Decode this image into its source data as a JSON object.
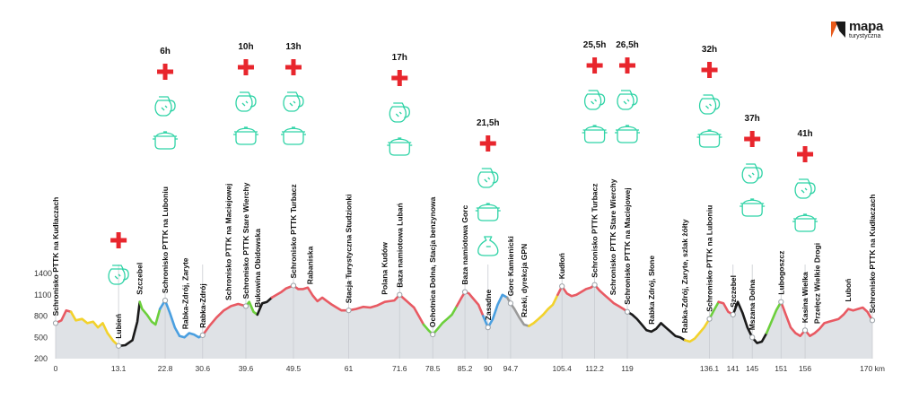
{
  "chart_data": {
    "type": "area",
    "title": "",
    "xlabel": "km",
    "ylabel": "",
    "xlim": [
      0,
      170
    ],
    "ylim": [
      200,
      1400
    ],
    "y_ticks": [
      200,
      500,
      800,
      1100,
      1400
    ],
    "x_ticks": [
      {
        "value": 0,
        "label": "0"
      },
      {
        "value": 13.1,
        "label": "13.1"
      },
      {
        "value": 22.8,
        "label": "22.8"
      },
      {
        "value": 30.6,
        "label": "30.6"
      },
      {
        "value": 39.6,
        "label": "39.6"
      },
      {
        "value": 49.5,
        "label": "49.5"
      },
      {
        "value": 61,
        "label": "61"
      },
      {
        "value": 71.6,
        "label": "71.6"
      },
      {
        "value": 78.5,
        "label": "78.5"
      },
      {
        "value": 85.2,
        "label": "85.2"
      },
      {
        "value": 90,
        "label": "90"
      },
      {
        "value": 94.7,
        "label": "94.7"
      },
      {
        "value": 105.4,
        "label": "105.4"
      },
      {
        "value": 112.2,
        "label": "112.2"
      },
      {
        "value": 119,
        "label": "119"
      },
      {
        "value": 136.1,
        "label": "136.1"
      },
      {
        "value": 141,
        "label": "141"
      },
      {
        "value": 145,
        "label": "145"
      },
      {
        "value": 151,
        "label": "151"
      },
      {
        "value": 156,
        "label": "156"
      },
      {
        "value": 170,
        "label": "170 km"
      }
    ],
    "profile": [
      [
        0,
        700
      ],
      [
        1.2,
        740
      ],
      [
        2.2,
        880
      ],
      [
        3.2,
        860
      ],
      [
        4.2,
        740
      ],
      [
        5.5,
        760
      ],
      [
        6.6,
        700
      ],
      [
        7.8,
        720
      ],
      [
        8.8,
        640
      ],
      [
        9.8,
        700
      ],
      [
        10.8,
        560
      ],
      [
        12.0,
        450
      ],
      [
        13.1,
        380
      ],
      [
        14.5,
        390
      ],
      [
        16.0,
        460
      ],
      [
        17.0,
        720
      ],
      [
        17.5,
        1000
      ],
      [
        18.0,
        900
      ],
      [
        19.0,
        820
      ],
      [
        20.0,
        720
      ],
      [
        20.8,
        680
      ],
      [
        21.7,
        900
      ],
      [
        22.8,
        1020
      ],
      [
        23.8,
        840
      ],
      [
        24.8,
        640
      ],
      [
        25.8,
        520
      ],
      [
        26.8,
        500
      ],
      [
        27.8,
        560
      ],
      [
        28.8,
        540
      ],
      [
        29.8,
        500
      ],
      [
        30.6,
        530
      ],
      [
        32.0,
        660
      ],
      [
        33.5,
        780
      ],
      [
        35.0,
        880
      ],
      [
        36.5,
        940
      ],
      [
        38.0,
        970
      ],
      [
        39.6,
        940
      ],
      [
        40.3,
        1000
      ],
      [
        41.2,
        860
      ],
      [
        42.0,
        820
      ],
      [
        43.0,
        980
      ],
      [
        44.0,
        1000
      ],
      [
        45.0,
        1060
      ],
      [
        46.0,
        1100
      ],
      [
        47.0,
        1140
      ],
      [
        48.0,
        1190
      ],
      [
        49.5,
        1230
      ],
      [
        50.5,
        1180
      ],
      [
        51.5,
        1180
      ],
      [
        52.5,
        1200
      ],
      [
        53.5,
        1090
      ],
      [
        54.5,
        1010
      ],
      [
        55.5,
        1060
      ],
      [
        56.5,
        1010
      ],
      [
        57.5,
        960
      ],
      [
        58.5,
        920
      ],
      [
        59.5,
        880
      ],
      [
        61.0,
        880
      ],
      [
        62.5,
        900
      ],
      [
        64.0,
        930
      ],
      [
        65.5,
        920
      ],
      [
        67.0,
        950
      ],
      [
        68.5,
        1000
      ],
      [
        69.5,
        1010
      ],
      [
        70.5,
        1020
      ],
      [
        71.6,
        1100
      ],
      [
        72.6,
        1040
      ],
      [
        73.6,
        980
      ],
      [
        74.6,
        920
      ],
      [
        75.6,
        800
      ],
      [
        76.6,
        680
      ],
      [
        77.6,
        600
      ],
      [
        78.5,
        540
      ],
      [
        79.5,
        620
      ],
      [
        80.5,
        700
      ],
      [
        81.5,
        760
      ],
      [
        82.5,
        820
      ],
      [
        83.5,
        940
      ],
      [
        84.5,
        1060
      ],
      [
        85.2,
        1140
      ],
      [
        86.0,
        1120
      ],
      [
        87.0,
        1040
      ],
      [
        88.0,
        960
      ],
      [
        89.0,
        800
      ],
      [
        90.0,
        640
      ],
      [
        91.0,
        760
      ],
      [
        92.0,
        960
      ],
      [
        93.0,
        1100
      ],
      [
        94.0,
        1060
      ],
      [
        94.7,
        980
      ],
      [
        95.5,
        900
      ],
      [
        96.5,
        780
      ],
      [
        97.5,
        680
      ],
      [
        98.5,
        660
      ],
      [
        99.5,
        700
      ],
      [
        100.5,
        760
      ],
      [
        101.5,
        820
      ],
      [
        102.5,
        900
      ],
      [
        103.5,
        960
      ],
      [
        104.5,
        1100
      ],
      [
        105.4,
        1220
      ],
      [
        106.4,
        1120
      ],
      [
        107.4,
        1080
      ],
      [
        108.4,
        1100
      ],
      [
        109.4,
        1140
      ],
      [
        110.4,
        1180
      ],
      [
        111.4,
        1200
      ],
      [
        112.2,
        1240
      ],
      [
        113.2,
        1160
      ],
      [
        114.2,
        1100
      ],
      [
        115.2,
        1040
      ],
      [
        116.2,
        980
      ],
      [
        117.2,
        940
      ],
      [
        118.2,
        900
      ],
      [
        119.0,
        860
      ],
      [
        120.0,
        820
      ],
      [
        121.0,
        760
      ],
      [
        122.0,
        680
      ],
      [
        123.0,
        600
      ],
      [
        124.0,
        580
      ],
      [
        125.0,
        620
      ],
      [
        126.0,
        700
      ],
      [
        127.0,
        640
      ],
      [
        128.0,
        580
      ],
      [
        129.0,
        520
      ],
      [
        130.0,
        500
      ],
      [
        131.0,
        460
      ],
      [
        132.0,
        440
      ],
      [
        133.0,
        480
      ],
      [
        134.0,
        560
      ],
      [
        135.0,
        640
      ],
      [
        136.1,
        760
      ],
      [
        137.0,
        880
      ],
      [
        138.0,
        1000
      ],
      [
        139.0,
        980
      ],
      [
        140.0,
        860
      ],
      [
        141.0,
        820
      ],
      [
        142.0,
        1000
      ],
      [
        143.0,
        840
      ],
      [
        144.0,
        640
      ],
      [
        145.0,
        500
      ],
      [
        146.0,
        420
      ],
      [
        147.0,
        440
      ],
      [
        148.0,
        560
      ],
      [
        149.0,
        720
      ],
      [
        150.0,
        880
      ],
      [
        151.0,
        1000
      ],
      [
        152.0,
        820
      ],
      [
        153.0,
        640
      ],
      [
        154.0,
        560
      ],
      [
        155.0,
        520
      ],
      [
        156.0,
        600
      ],
      [
        157.0,
        520
      ],
      [
        158.0,
        560
      ],
      [
        159.0,
        620
      ],
      [
        160.0,
        700
      ],
      [
        161.0,
        720
      ],
      [
        162.0,
        740
      ],
      [
        163.0,
        760
      ],
      [
        164.0,
        820
      ],
      [
        165.0,
        900
      ],
      [
        166.0,
        880
      ],
      [
        167.0,
        900
      ],
      [
        168.0,
        920
      ],
      [
        169.0,
        860
      ],
      [
        170.0,
        740
      ]
    ],
    "segments": [
      {
        "from": 0,
        "to": 3.2,
        "color": "#e85a63"
      },
      {
        "from": 3.2,
        "to": 10.8,
        "color": "#f2d22c"
      },
      {
        "from": 10.8,
        "to": 13.1,
        "color": "#f2d22c"
      },
      {
        "from": 13.1,
        "to": 17.5,
        "color": "#1a1a1a"
      },
      {
        "from": 17.5,
        "to": 21.7,
        "color": "#6ccf3c"
      },
      {
        "from": 21.7,
        "to": 25.8,
        "color": "#4a9fe0"
      },
      {
        "from": 25.8,
        "to": 30.6,
        "color": "#4a9fe0"
      },
      {
        "from": 30.6,
        "to": 39.6,
        "color": "#e85a63"
      },
      {
        "from": 39.6,
        "to": 42.0,
        "color": "#6ccf3c"
      },
      {
        "from": 42.0,
        "to": 45.0,
        "color": "#1a1a1a"
      },
      {
        "from": 45.0,
        "to": 76.6,
        "color": "#e85a63"
      },
      {
        "from": 76.6,
        "to": 83.5,
        "color": "#6ccf3c"
      },
      {
        "from": 83.5,
        "to": 89.0,
        "color": "#e85a63"
      },
      {
        "from": 89.0,
        "to": 94.0,
        "color": "#4a9fe0"
      },
      {
        "from": 94.0,
        "to": 98.5,
        "color": "#9a9a9a"
      },
      {
        "from": 98.5,
        "to": 104.5,
        "color": "#f2d22c"
      },
      {
        "from": 104.5,
        "to": 119.0,
        "color": "#e85a63"
      },
      {
        "from": 119.0,
        "to": 131.0,
        "color": "#1a1a1a"
      },
      {
        "from": 131.0,
        "to": 136.1,
        "color": "#f2d22c"
      },
      {
        "from": 136.1,
        "to": 138.0,
        "color": "#6ccf3c"
      },
      {
        "from": 138.0,
        "to": 141.0,
        "color": "#e85a63"
      },
      {
        "from": 141.0,
        "to": 148.0,
        "color": "#1a1a1a"
      },
      {
        "from": 148.0,
        "to": 151.0,
        "color": "#6ccf3c"
      },
      {
        "from": 151.0,
        "to": 170,
        "color": "#e85a63"
      }
    ],
    "places": [
      {
        "km": 0,
        "label": "Schronisko PTTK na Kudłaczach",
        "tier": 3
      },
      {
        "km": 13.1,
        "label": "Lubień",
        "tier": 1
      },
      {
        "km": 17.5,
        "label": "Szczebel",
        "tier": 1
      },
      {
        "km": 22.8,
        "label": "Schronisko PTTK na Luboniu",
        "tier": 3
      },
      {
        "km": 27.0,
        "label": "Rabka-Zdrój, Zaryte",
        "tier": 2
      },
      {
        "km": 30.6,
        "label": "Rabka-Zdrój",
        "tier": 1
      },
      {
        "km": 36.0,
        "label": "Schronisko PTTK na Maciejowej",
        "tier": 3
      },
      {
        "km": 39.6,
        "label": "Schronisko PTTK Stare Wierchy",
        "tier": 3
      },
      {
        "km": 42.0,
        "label": "Bukowina Obidowska",
        "tier": 2
      },
      {
        "km": 49.5,
        "label": "Schronisko PTTK Turbacz",
        "tier": 3
      },
      {
        "km": 53.0,
        "label": "Rabaniska",
        "tier": 1
      },
      {
        "km": 61.0,
        "label": "Stacja Turystyczna Studzionki",
        "tier": 3
      },
      {
        "km": 68.5,
        "label": "Polana Kudów",
        "tier": 1
      },
      {
        "km": 71.6,
        "label": "Baza namiotowa Lubań",
        "tier": 3
      },
      {
        "km": 78.5,
        "label": "Ochotnica Dolna, Stacja benzynowa",
        "tier": 2
      },
      {
        "km": 85.2,
        "label": "Baza namiotowa Gorc",
        "tier": 3
      },
      {
        "km": 90.0,
        "label": "Zasadne",
        "tier": 1
      },
      {
        "km": 94.7,
        "label": "Gorc Kamienicki",
        "tier": 2
      },
      {
        "km": 97.5,
        "label": "Rzeki, dyrekcja GPN",
        "tier": 1
      },
      {
        "km": 105.4,
        "label": "Kudłoń",
        "tier": 1
      },
      {
        "km": 112.2,
        "label": "Schronisko PTTK Turbacz",
        "tier": 3
      },
      {
        "km": 116.0,
        "label": "Schronisko PTTK Stare Wierchy",
        "tier": 2
      },
      {
        "km": 119.0,
        "label": "Schronisko PTTK na Maciejowej",
        "tier": 3
      },
      {
        "km": 124.0,
        "label": "Rabka Zdrój, Słone",
        "tier": 1
      },
      {
        "km": 131.0,
        "label": "Rabka-Zdrój, Zaryte, szlak żółty",
        "tier": 2
      },
      {
        "km": 136.1,
        "label": "Schronisko PTTK na Luboniu",
        "tier": 3
      },
      {
        "km": 141.0,
        "label": "Szczebel",
        "tier": 1
      },
      {
        "km": 145.0,
        "label": "Mszana Dolna",
        "tier": 1
      },
      {
        "km": 151.0,
        "label": "Lubogoszcz",
        "tier": 1
      },
      {
        "km": 156.0,
        "label": "Kasina Wielka",
        "tier": 1
      },
      {
        "km": 158.5,
        "label": "Przełęcz Wielkie Drogi",
        "tier": 1
      },
      {
        "km": 165.0,
        "label": "Luboń",
        "tier": 1
      },
      {
        "km": 170.0,
        "label": "Schronisko PTTK na Kudłaczach",
        "tier": 3
      }
    ],
    "stops": [
      {
        "km": 22.8,
        "time": "6h",
        "icons": [
          "plus-icon",
          "jug-icon",
          "pot-icon"
        ]
      },
      {
        "km": 39.6,
        "time": "10h",
        "icons": [
          "plus-icon",
          "jug-icon",
          "pot-icon"
        ]
      },
      {
        "km": 49.5,
        "time": "13h",
        "icons": [
          "plus-icon",
          "jug-icon",
          "pot-icon"
        ]
      },
      {
        "km": 71.6,
        "time": "17h",
        "icons": [
          "plus-icon",
          "jug-icon",
          "pot-icon"
        ]
      },
      {
        "km": 90.0,
        "time": "21,5h",
        "icons": [
          "plus-icon",
          "jug-icon",
          "pot-icon",
          "bag-icon"
        ]
      },
      {
        "km": 112.2,
        "time": "25,5h",
        "icons": [
          "plus-icon",
          "jug-icon",
          "pot-icon"
        ]
      },
      {
        "km": 119.0,
        "time": "26,5h",
        "icons": [
          "plus-icon",
          "jug-icon",
          "pot-icon"
        ]
      },
      {
        "km": 136.1,
        "time": "32h",
        "icons": [
          "plus-icon",
          "jug-icon",
          "pot-icon"
        ]
      },
      {
        "km": 145.0,
        "time": "37h",
        "icons": [
          "plus-icon",
          "jug-icon",
          "pot-icon"
        ]
      },
      {
        "km": 156.0,
        "time": "41h",
        "icons": [
          "plus-icon",
          "jug-icon",
          "pot-icon"
        ]
      }
    ],
    "extra_icons": [
      {
        "km": 13.1,
        "icons": [
          "plus-icon",
          "jug-icon"
        ]
      }
    ],
    "colors": {
      "red": "#e85a63",
      "yellow": "#f2d22c",
      "black": "#1a1a1a",
      "green": "#6ccf3c",
      "blue": "#4a9fe0",
      "gray": "#9a9a9a",
      "fill": "#dfe2e6",
      "icon": "#2fd3a6",
      "plus": "#e8262d"
    }
  },
  "logo": {
    "main": "mapa",
    "sub": "turystyczna"
  }
}
